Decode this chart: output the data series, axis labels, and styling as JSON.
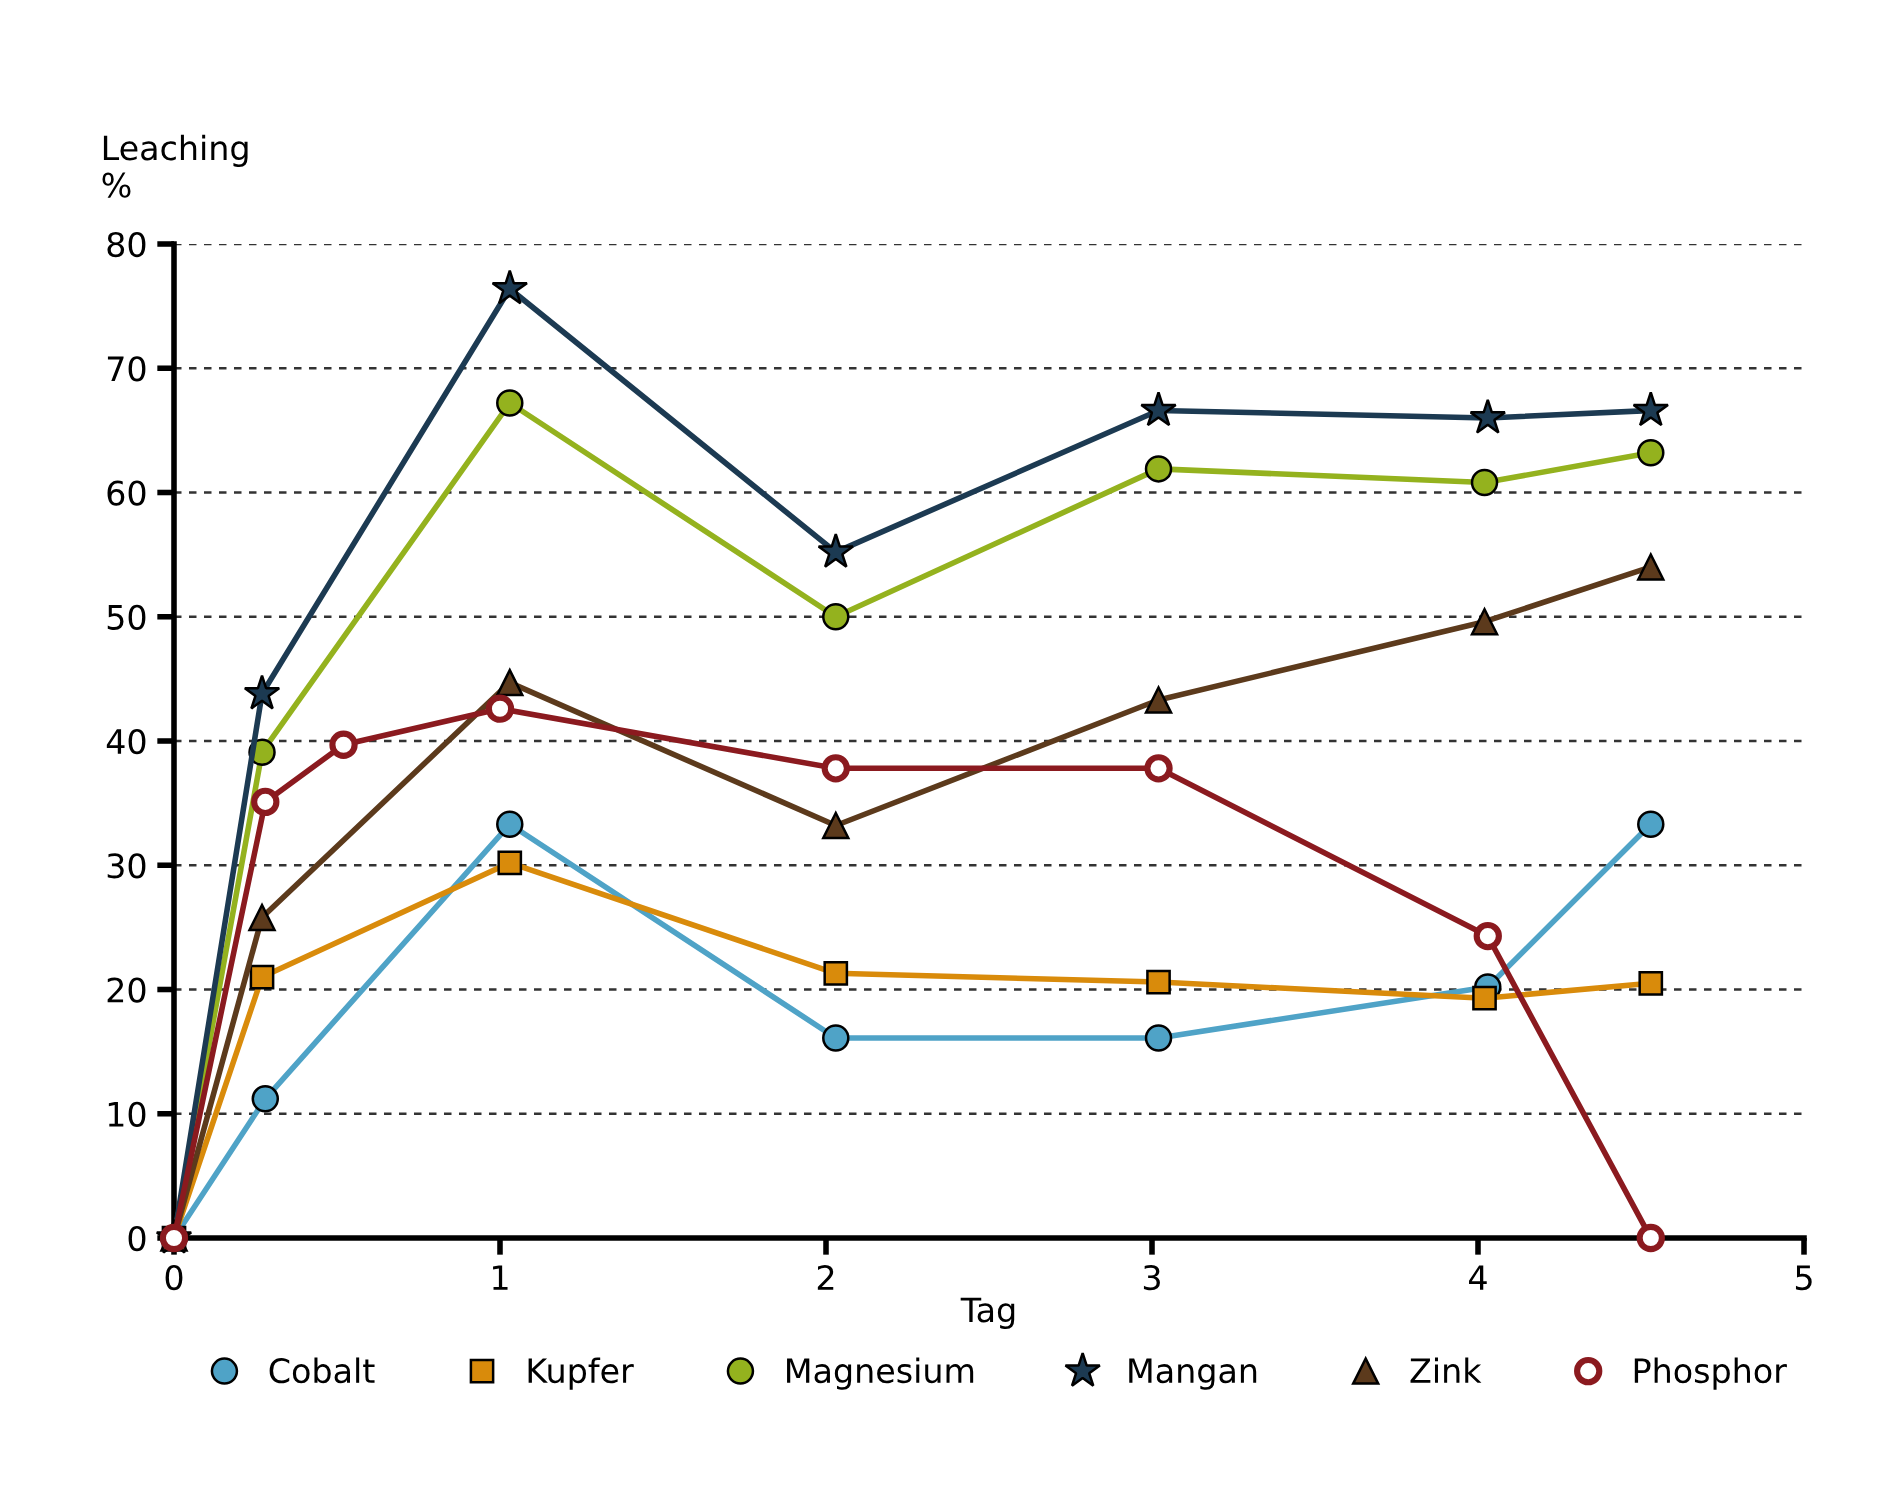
{
  "chart_data": {
    "type": "line",
    "xlabel": "Tag",
    "ylabel": "Leaching\n%",
    "xlim": [
      0,
      5
    ],
    "xticks": [
      0,
      1,
      2,
      3,
      4,
      5
    ],
    "ylim": [
      0,
      80
    ],
    "yticks": [
      0,
      10,
      20,
      30,
      40,
      50,
      60,
      70,
      80
    ],
    "grid": "y",
    "legend": "bottom",
    "series": [
      {
        "name": "Cobalt",
        "color": "#4fa3c7",
        "marker": "circle",
        "x": [
          0,
          0.28,
          1.03,
          2.03,
          3.02,
          4.03,
          4.53
        ],
        "values": [
          0,
          11.2,
          33.3,
          16.1,
          16.1,
          20.2,
          33.3
        ]
      },
      {
        "name": "Kupfer",
        "color": "#d98b0b",
        "marker": "square",
        "x": [
          0,
          0.27,
          1.03,
          2.03,
          3.02,
          4.02,
          4.53
        ],
        "values": [
          0,
          21.0,
          30.2,
          21.3,
          20.6,
          19.3,
          20.5
        ]
      },
      {
        "name": "Magnesium",
        "color": "#94b21e",
        "marker": "circle",
        "x": [
          0,
          0.27,
          1.03,
          2.03,
          3.02,
          4.02,
          4.53
        ],
        "values": [
          0,
          39.1,
          67.2,
          50.0,
          61.9,
          60.8,
          63.2
        ]
      },
      {
        "name": "Mangan",
        "color": "#1c3a52",
        "marker": "star",
        "x": [
          0,
          0.27,
          1.03,
          2.03,
          3.02,
          4.03,
          4.53
        ],
        "values": [
          0,
          43.8,
          76.4,
          55.2,
          66.6,
          66.0,
          66.6
        ]
      },
      {
        "name": "Zink",
        "color": "#5c3a1c",
        "marker": "triangle",
        "x": [
          0,
          0.27,
          1.03,
          2.03,
          3.02,
          4.02,
          4.53
        ],
        "values": [
          0,
          25.8,
          44.7,
          33.2,
          43.3,
          49.6,
          54.0
        ]
      },
      {
        "name": "Phosphor",
        "color": "#8b1a1f",
        "marker": "circle",
        "x": [
          0,
          0.28,
          0.52,
          1.0,
          2.03,
          3.02,
          4.03,
          4.53
        ],
        "values": [
          0,
          35.1,
          39.7,
          42.6,
          37.8,
          37.8,
          24.3,
          0
        ]
      }
    ]
  }
}
